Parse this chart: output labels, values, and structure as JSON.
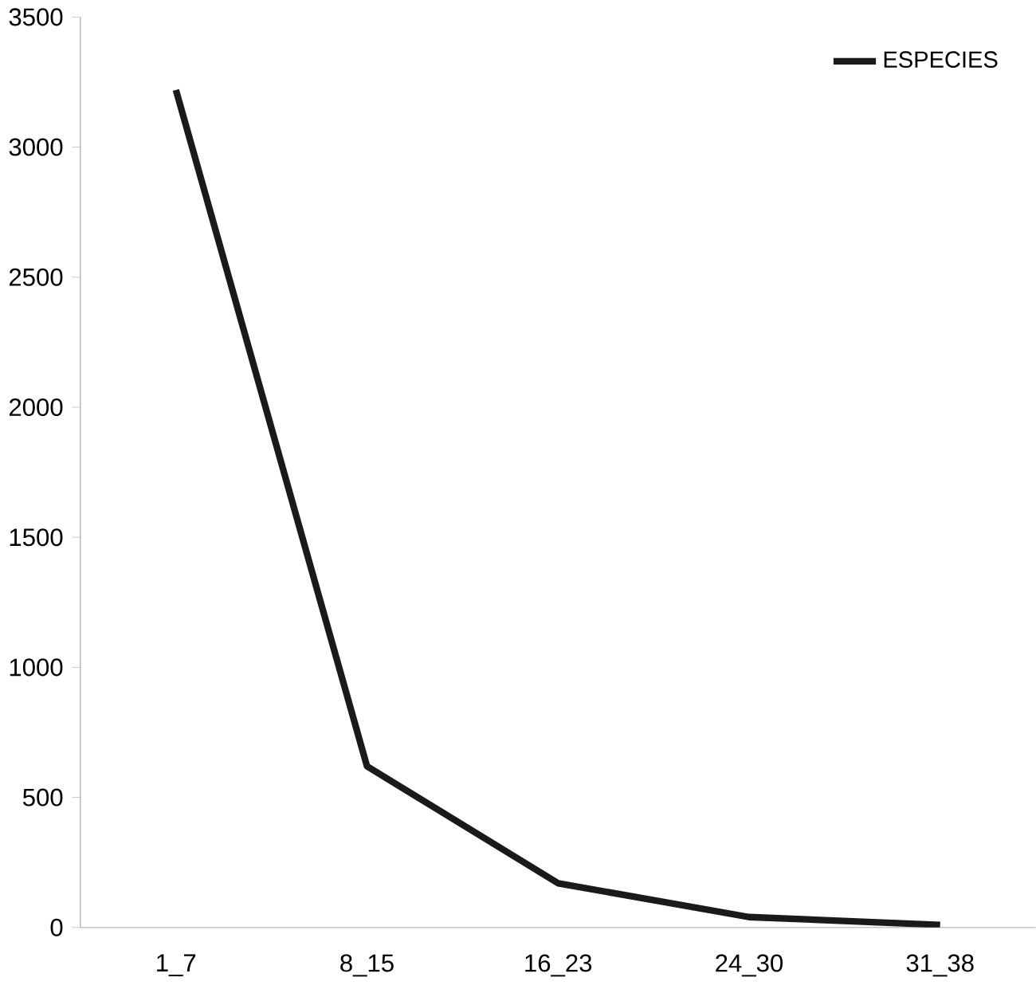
{
  "chart_data": {
    "type": "line",
    "categories": [
      "1_7",
      "8_15",
      "16_23",
      "24_30",
      "31_38"
    ],
    "series": [
      {
        "name": "ESPECIES",
        "color": "#1a1a1a",
        "values": [
          3220,
          620,
          170,
          40,
          10
        ]
      }
    ],
    "ylim": [
      0,
      3500
    ],
    "yticks": [
      0,
      500,
      1000,
      1500,
      2000,
      2500,
      3000,
      3500
    ],
    "grid": false,
    "legend": "top right",
    "marker": "none",
    "line_style": "solid"
  }
}
